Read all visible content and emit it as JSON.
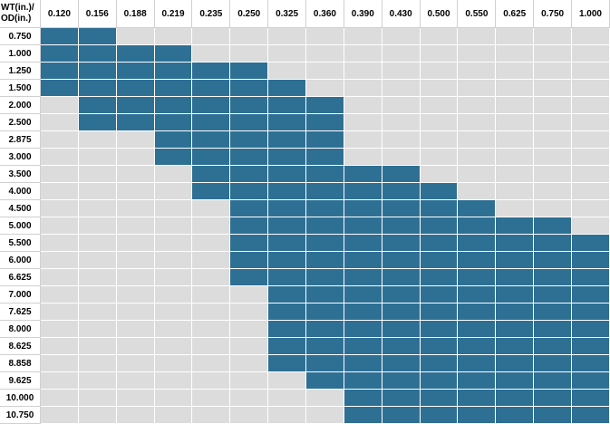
{
  "corner": {
    "line1": "WT(in.)/",
    "line2": "OD(in.)"
  },
  "wall_thickness": [
    "0.120",
    "0.156",
    "0.188",
    "0.219",
    "0.235",
    "0.250",
    "0.325",
    "0.360",
    "0.390",
    "0.430",
    "0.500",
    "0.550",
    "0.625",
    "0.750",
    "1.000"
  ],
  "outer_diameter": [
    "0.750",
    "1.000",
    "1.250",
    "1.500",
    "2.000",
    "2.500",
    "2.875",
    "3.000",
    "3.500",
    "4.000",
    "4.500",
    "5.000",
    "5.500",
    "6.000",
    "6.625",
    "7.000",
    "7.625",
    "8.000",
    "8.625",
    "8.858",
    "9.625",
    "10.000",
    "10.750"
  ],
  "available_ranges": [
    [
      0,
      1
    ],
    [
      0,
      3
    ],
    [
      0,
      5
    ],
    [
      0,
      6
    ],
    [
      1,
      7
    ],
    [
      1,
      7
    ],
    [
      3,
      7
    ],
    [
      3,
      7
    ],
    [
      4,
      9
    ],
    [
      4,
      10
    ],
    [
      5,
      11
    ],
    [
      5,
      13
    ],
    [
      5,
      14
    ],
    [
      5,
      14
    ],
    [
      5,
      14
    ],
    [
      6,
      14
    ],
    [
      6,
      14
    ],
    [
      6,
      14
    ],
    [
      6,
      14
    ],
    [
      6,
      14
    ],
    [
      7,
      14
    ],
    [
      8,
      14
    ],
    [
      8,
      14
    ]
  ],
  "colors": {
    "available": "#2e6f94",
    "unavailable": "#dcdcdc",
    "header": "#ffffff"
  }
}
